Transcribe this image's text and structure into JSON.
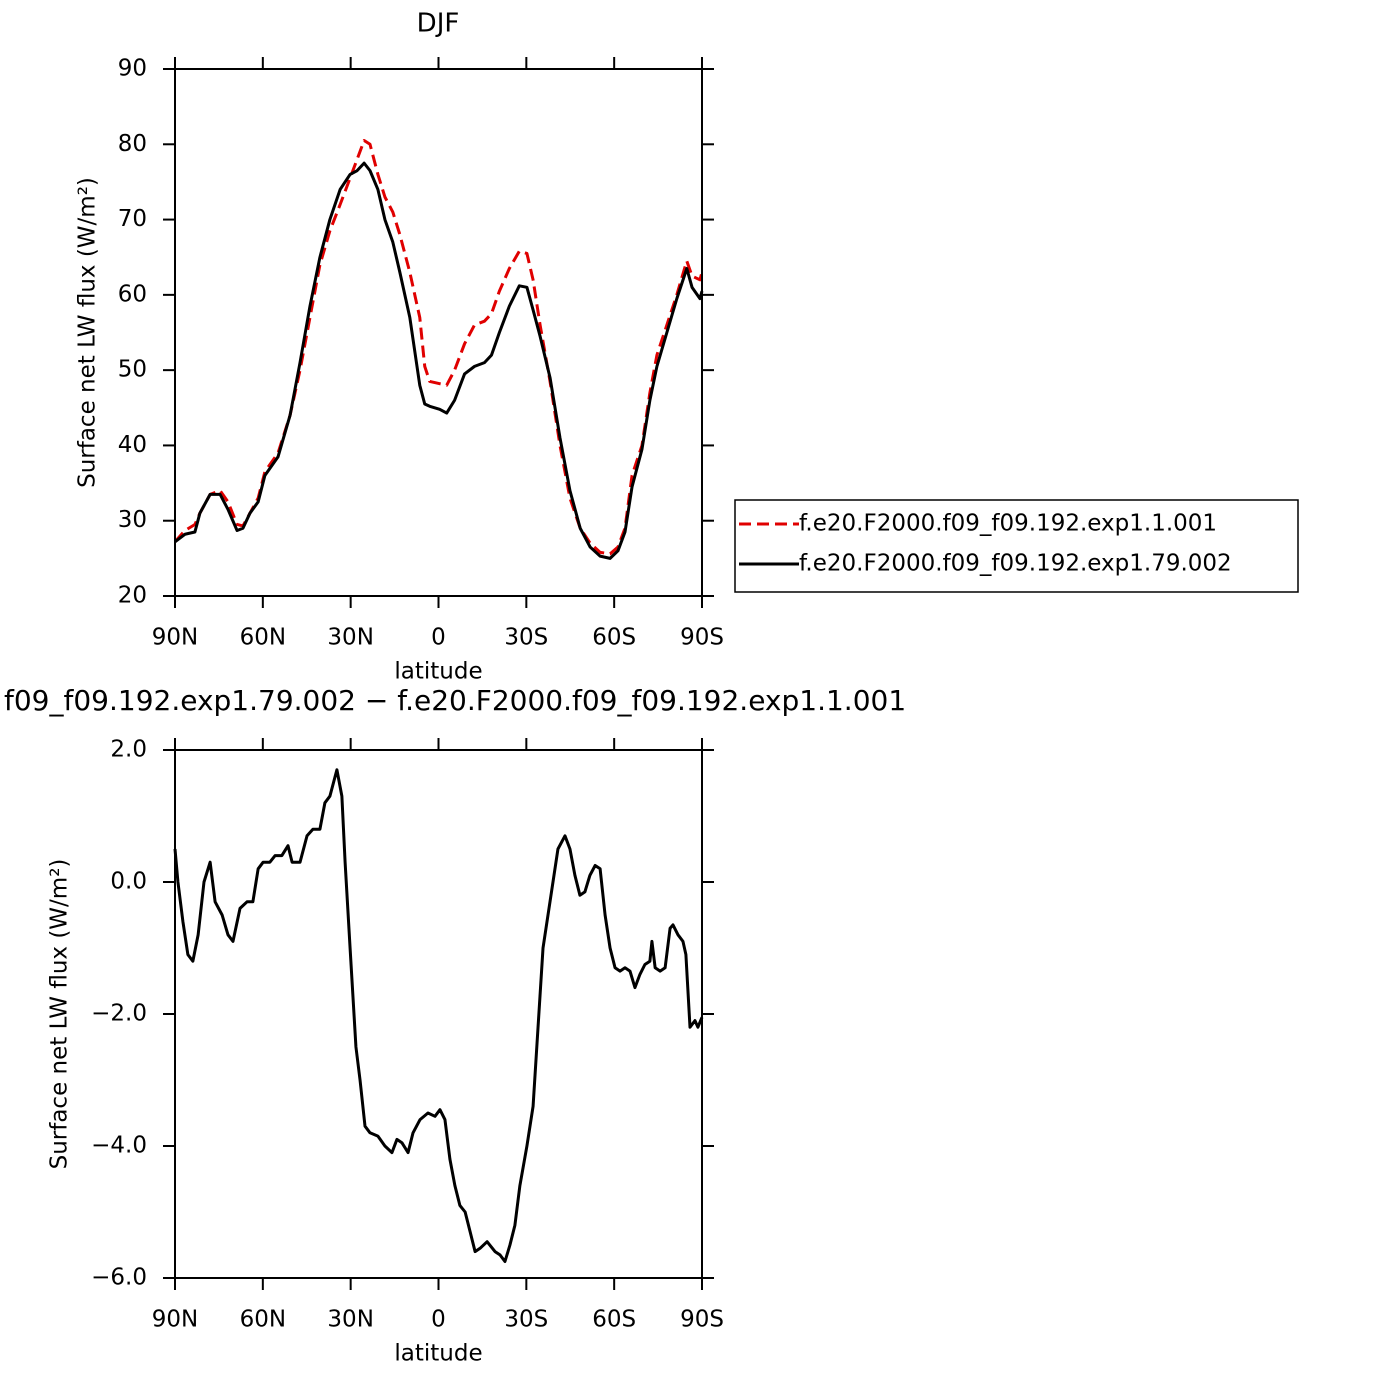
{
  "chart_data": [
    {
      "type": "line",
      "title": "DJF",
      "xlabel": "latitude",
      "ylabel": "Surface net LW flux (W/m²)",
      "xlim": [
        90,
        -90
      ],
      "xticks": [
        {
          "value": 90,
          "label": "90N"
        },
        {
          "value": 60,
          "label": "60N"
        },
        {
          "value": 30,
          "label": "30N"
        },
        0,
        {
          "value": -30,
          "label": "30S"
        },
        {
          "value": -60,
          "label": "60S"
        },
        {
          "value": -90,
          "label": "90S"
        }
      ],
      "ylim": [
        20,
        90
      ],
      "yticks": [
        20,
        30,
        40,
        50,
        60,
        70,
        80,
        90
      ],
      "legend": "right",
      "x": [
        90,
        86.6,
        83.2,
        81.5,
        78.0,
        74.6,
        71.9,
        68.8,
        66.8,
        64.4,
        61.6,
        59.3,
        54.8,
        50.7,
        47.3,
        43.9,
        40.5,
        37.1,
        33.6,
        30.2,
        27.8,
        25.4,
        23.4,
        20.7,
        18.3,
        15.6,
        13.2,
        9.8,
        6.4,
        4.7,
        3.0,
        -0.4,
        -2.8,
        -5.5,
        -8.9,
        -12.3,
        -15.7,
        -18.1,
        -20.8,
        -24.2,
        -27.6,
        -30.2,
        -32.3,
        -34.7,
        -38.1,
        -41.5,
        -44.9,
        -48.4,
        -51.8,
        -55.2,
        -58.6,
        -61.3,
        -63.7,
        -66.1,
        -69.5,
        -72.2,
        -74.6,
        -78.0,
        -81.4,
        -84.8,
        -86.6,
        -89.3,
        -90
      ],
      "series": [
        {
          "name": "f.e20.F2000.f09_f09.192.exp1.1.001",
          "color": "#e00000",
          "dashed": true,
          "values": [
            27.2,
            28.7,
            29.5,
            31,
            33.5,
            34,
            32.5,
            29.5,
            29.3,
            31,
            33,
            36.5,
            39,
            44,
            50,
            57,
            64,
            68.5,
            72,
            75.5,
            78,
            80.5,
            80,
            76,
            73,
            71,
            68,
            63,
            57,
            50.5,
            48.5,
            48.2,
            48,
            50,
            53.5,
            56,
            56.5,
            57.5,
            60.5,
            63.5,
            65.8,
            65.5,
            62,
            56,
            48.5,
            40,
            33,
            29,
            27,
            25.8,
            25.6,
            26.5,
            29,
            36,
            40,
            47,
            52,
            56,
            60,
            64.5,
            62.5,
            62,
            63
          ]
        },
        {
          "name": "f.e20.F2000.f09_f09.192.exp1.79.002",
          "color": "#000000",
          "dashed": false,
          "values": [
            27.2,
            28.2,
            28.5,
            31,
            33.5,
            33.5,
            31.5,
            28.7,
            29,
            31,
            32.5,
            36,
            38.5,
            44,
            51,
            58.5,
            65,
            70,
            74,
            76,
            76.5,
            77.5,
            76.5,
            74,
            70,
            67,
            63,
            57,
            48,
            45.5,
            45.2,
            44.8,
            44.3,
            46,
            49.5,
            50.5,
            51,
            52,
            55,
            58.5,
            61.2,
            61,
            58,
            54.5,
            49,
            41,
            34,
            29,
            26.5,
            25.3,
            25,
            26,
            28.5,
            34.5,
            39.5,
            46,
            50.5,
            55,
            59.5,
            63.5,
            61,
            59.5,
            60.5
          ]
        }
      ]
    },
    {
      "type": "line",
      "title": "f09_f09.192.exp1.79.002 − f.e20.F2000.f09_f09.192.exp1.1.001",
      "xlabel": "latitude",
      "ylabel": "Surface net LW flux (W/m²)",
      "xlim": [
        90,
        -90
      ],
      "xticks": [
        {
          "value": 90,
          "label": "90N"
        },
        {
          "value": 60,
          "label": "60N"
        },
        {
          "value": 30,
          "label": "30N"
        },
        0,
        {
          "value": -30,
          "label": "30S"
        },
        {
          "value": -60,
          "label": "60S"
        },
        {
          "value": -90,
          "label": "90S"
        }
      ],
      "ylim": [
        -6,
        2
      ],
      "yticks": [
        {
          "value": 2,
          "label": "2.0"
        },
        {
          "value": 0,
          "label": "0.0"
        },
        {
          "value": -2,
          "label": "−2.0"
        },
        {
          "value": -4,
          "label": "−4.0"
        },
        {
          "value": -6,
          "label": "−6.0"
        }
      ],
      "x": [
        90,
        89.0,
        87.3,
        85.6,
        83.9,
        82.1,
        80.1,
        78.0,
        76.3,
        73.9,
        71.9,
        70.2,
        67.8,
        65.4,
        63.4,
        61.6,
        59.9,
        57.6,
        55.8,
        53.5,
        51.4,
        50.0,
        47.3,
        44.9,
        42.9,
        40.5,
        38.8,
        37.1,
        34.7,
        33.0,
        31.9,
        30.2,
        28.2,
        26.8,
        25.1,
        23.4,
        20.7,
        18.3,
        15.9,
        14.2,
        12.5,
        10.4,
        8.7,
        6.3,
        3.6,
        1.2,
        -0.5,
        -2.2,
        -3.9,
        -5.6,
        -7.3,
        -9.1,
        -10.8,
        -12.5,
        -14.2,
        -16.6,
        -19.3,
        -21.0,
        -22.7,
        -24.4,
        -26.1,
        -27.8,
        -30.2,
        -32.3,
        -34.0,
        -35.7,
        -37.4,
        -39.1,
        -40.8,
        -43.2,
        -44.9,
        -46.6,
        -48.3,
        -50.0,
        -51.7,
        -53.5,
        -55.2,
        -56.9,
        -58.6,
        -60.3,
        -62.0,
        -63.7,
        -65.4,
        -67.1,
        -68.8,
        -70.5,
        -72.2,
        -72.9,
        -74.0,
        -75.7,
        -77.4,
        -79.1,
        -80.1,
        -81.8,
        -83.5,
        -84.5,
        -85.9,
        -87.6,
        -88.6,
        -90
      ],
      "series": [
        {
          "color": "#000000",
          "dashed": false,
          "values": [
            0.5,
            0,
            -0.6,
            -1.1,
            -1.2,
            -0.8,
            0,
            0.3,
            -0.3,
            -0.5,
            -0.8,
            -0.9,
            -0.4,
            -0.3,
            -0.3,
            0.2,
            0.3,
            0.3,
            0.4,
            0.4,
            0.55,
            0.3,
            0.3,
            0.7,
            0.8,
            0.8,
            1.2,
            1.3,
            1.7,
            1.3,
            0.3,
            -1.0,
            -2.5,
            -3.0,
            -3.7,
            -3.8,
            -3.85,
            -4.0,
            -4.1,
            -3.9,
            -3.95,
            -4.1,
            -3.8,
            -3.6,
            -3.5,
            -3.55,
            -3.45,
            -3.6,
            -4.2,
            -4.6,
            -4.9,
            -5.0,
            -5.3,
            -5.6,
            -5.55,
            -5.45,
            -5.6,
            -5.65,
            -5.75,
            -5.5,
            -5.2,
            -4.6,
            -4.0,
            -3.4,
            -2.2,
            -1.0,
            -0.5,
            0,
            0.5,
            0.7,
            0.5,
            0.1,
            -0.2,
            -0.15,
            0.1,
            0.25,
            0.2,
            -0.5,
            -1.0,
            -1.3,
            -1.35,
            -1.3,
            -1.35,
            -1.6,
            -1.4,
            -1.25,
            -1.2,
            -0.9,
            -1.3,
            -1.35,
            -1.3,
            -0.7,
            -0.65,
            -0.8,
            -0.9,
            -1.1,
            -2.2,
            -2.1,
            -2.2,
            -2.05
          ]
        }
      ]
    }
  ]
}
